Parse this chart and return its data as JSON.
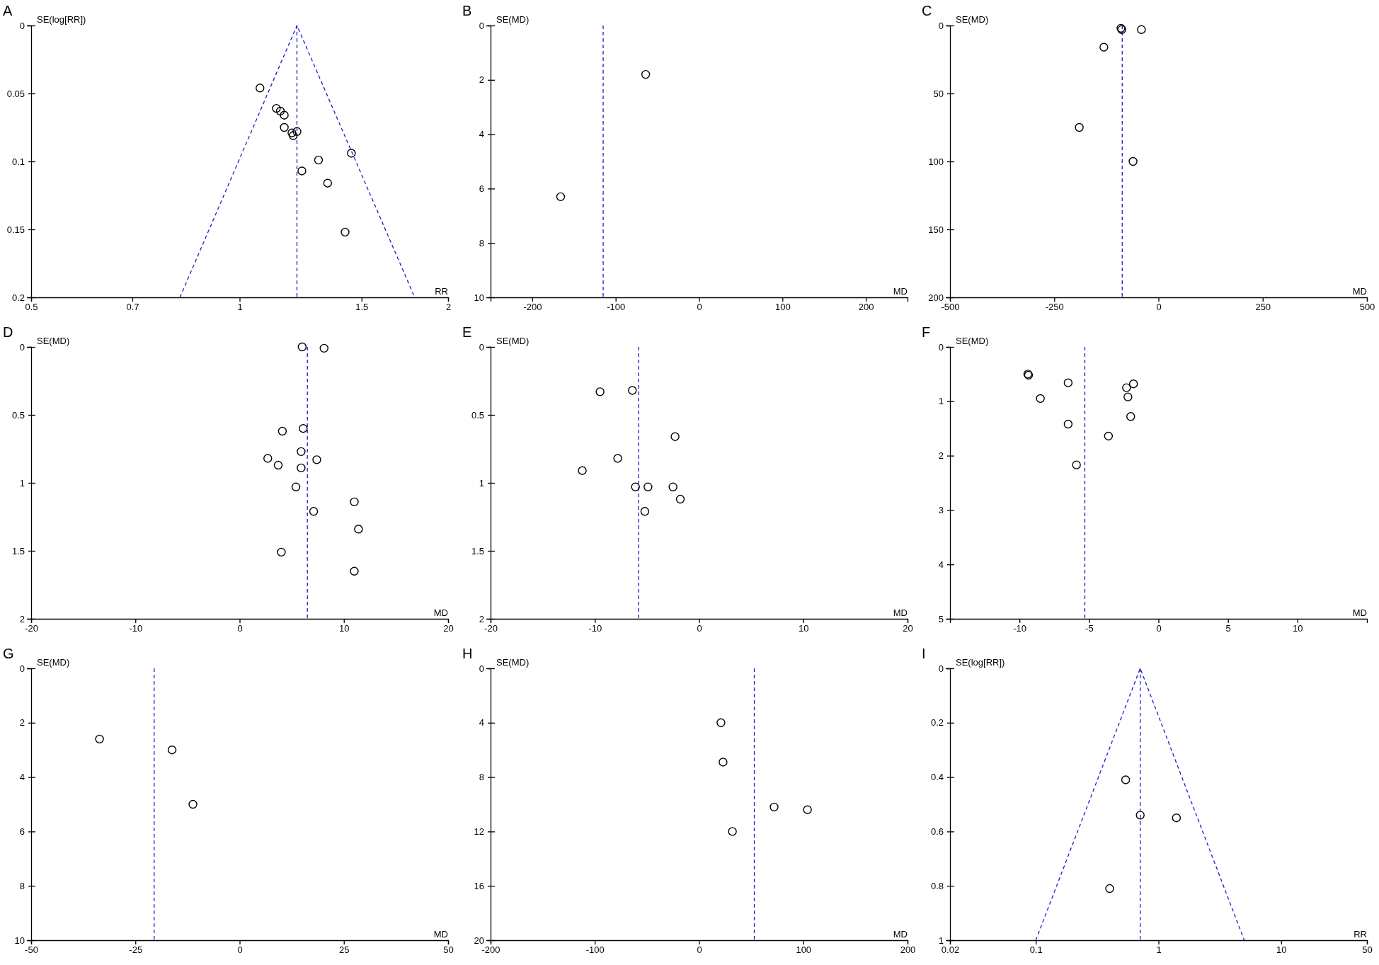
{
  "chart_data": [
    {
      "type": "scatter",
      "title": "A",
      "xlabel": "RR",
      "ylabel": "SE(log[RR])",
      "log": "x",
      "xlim": [
        0.5,
        2
      ],
      "xticks": [
        0.5,
        0.7,
        1,
        1.5,
        2
      ],
      "ylim": [
        0.2,
        0
      ],
      "yticks": [
        0,
        0.05,
        0.1,
        0.15,
        0.2
      ],
      "series": [
        {
          "color": "#000000",
          "marker": "circle",
          "x": [
            1.07,
            1.13,
            1.145,
            1.16,
            1.16,
            1.19,
            1.21,
            1.195,
            1.45,
            1.3,
            1.23,
            1.34,
            1.42
          ],
          "values": [
            0.046,
            0.061,
            0.063,
            0.066,
            0.075,
            0.079,
            0.078,
            0.081,
            0.094,
            0.099,
            0.107,
            0.116,
            0.152
          ]
        },
        {
          "type": "line",
          "marker": "none",
          "color": "#1a1acc",
          "line_style": "dashed",
          "x": [
            0.82,
            1.21,
            1.79
          ],
          "values": [
            0.2,
            0,
            0.2
          ]
        }
      ],
      "ref_lines": [
        {
          "axis": "x",
          "value": 1.21,
          "color": "#1a1acc",
          "line_style": "dashed"
        }
      ]
    },
    {
      "type": "scatter",
      "title": "B",
      "xlabel": "MD",
      "ylabel": "SE(MD)",
      "marker": "circle",
      "xlim": [
        -250,
        250
      ],
      "xticks": [
        -200,
        -100,
        0,
        100,
        200
      ],
      "ylim": [
        10,
        0
      ],
      "yticks": [
        0,
        2,
        4,
        6,
        8,
        10
      ],
      "series": [
        {
          "color": "#000000",
          "x": [
            -64,
            -166
          ],
          "values": [
            1.8,
            6.3
          ]
        }
      ],
      "ref_lines": [
        {
          "axis": "x",
          "value": -115,
          "color": "#1a1acc",
          "line_style": "dashed"
        }
      ]
    },
    {
      "type": "scatter",
      "title": "C",
      "xlabel": "MD",
      "ylabel": "SE(MD)",
      "marker": "circle",
      "xlim": [
        -500,
        500
      ],
      "xticks": [
        -500,
        -250,
        0,
        250,
        500
      ],
      "ylim": [
        200,
        0
      ],
      "yticks": [
        0,
        50,
        100,
        150,
        200
      ],
      "series": [
        {
          "color": "#000000",
          "x": [
            -90,
            -88,
            -41,
            -131,
            -190,
            -61
          ],
          "values": [
            2,
            3,
            3,
            16,
            75,
            100
          ]
        }
      ],
      "ref_lines": [
        {
          "axis": "x",
          "value": -87,
          "color": "#1a1acc",
          "line_style": "dashed"
        }
      ]
    },
    {
      "type": "scatter",
      "title": "D",
      "xlabel": "MD",
      "ylabel": "SE(MD)",
      "marker": "circle",
      "xlim": [
        -20,
        20
      ],
      "xticks": [
        -20,
        -10,
        0,
        10,
        20
      ],
      "ylim": [
        2,
        0
      ],
      "yticks": [
        0,
        0.5,
        1,
        1.5,
        2
      ],
      "series": [
        {
          "color": "#000000",
          "x": [
            6.0,
            8.1,
            6.1,
            4.1,
            5.9,
            2.7,
            7.4,
            3.7,
            5.9,
            5.4,
            11.0,
            7.1,
            11.4,
            4.0,
            11.0
          ],
          "values": [
            0,
            0.01,
            0.6,
            0.62,
            0.77,
            0.82,
            0.83,
            0.87,
            0.89,
            1.03,
            1.14,
            1.21,
            1.34,
            1.51,
            1.65
          ]
        }
      ],
      "ref_lines": [
        {
          "axis": "x",
          "value": 6.5,
          "color": "#1a1acc",
          "line_style": "dashed"
        }
      ]
    },
    {
      "type": "scatter",
      "title": "E",
      "xlabel": "MD",
      "ylabel": "SE(MD)",
      "marker": "circle",
      "xlim": [
        -20,
        20
      ],
      "xticks": [
        -20,
        -10,
        0,
        10,
        20
      ],
      "ylim": [
        2,
        0
      ],
      "yticks": [
        0,
        0.5,
        1,
        1.5,
        2
      ],
      "series": [
        {
          "color": "#000000",
          "x": [
            -9.5,
            -6.4,
            -2.3,
            -7.8,
            -11.2,
            -6.1,
            -4.9,
            -2.5,
            -1.8,
            -5.2
          ],
          "values": [
            0.33,
            0.32,
            0.66,
            0.82,
            0.91,
            1.03,
            1.03,
            1.03,
            1.12,
            1.21
          ]
        }
      ],
      "ref_lines": [
        {
          "axis": "x",
          "value": -5.8,
          "color": "#1a1acc",
          "line_style": "dashed"
        }
      ]
    },
    {
      "type": "scatter",
      "title": "F",
      "xlabel": "MD",
      "ylabel": "SE(MD)",
      "marker": "circle",
      "xlim": [
        -15,
        15
      ],
      "xticks": [
        -10,
        -5,
        0,
        5,
        10
      ],
      "ylim": [
        5,
        0
      ],
      "yticks": [
        0,
        1,
        2,
        3,
        4,
        5
      ],
      "series": [
        {
          "color": "#000000",
          "x": [
            -9.4,
            -9.35,
            -8.5,
            -6.5,
            -6.5,
            -5.9,
            -3.6,
            -2.3,
            -1.8,
            -2.2,
            -2.0
          ],
          "values": [
            0.5,
            0.52,
            0.95,
            0.66,
            1.42,
            2.17,
            1.64,
            0.75,
            0.68,
            0.92,
            1.28
          ]
        }
      ],
      "ref_lines": [
        {
          "axis": "x",
          "value": -5.3,
          "color": "#1a1acc",
          "line_style": "dashed"
        }
      ]
    },
    {
      "type": "scatter",
      "title": "G",
      "xlabel": "MD",
      "ylabel": "SE(MD)",
      "marker": "circle",
      "xlim": [
        -50,
        50
      ],
      "xticks": [
        -50,
        -25,
        0,
        25,
        50
      ],
      "ylim": [
        10,
        0
      ],
      "yticks": [
        0,
        2,
        4,
        6,
        8,
        10
      ],
      "series": [
        {
          "color": "#000000",
          "x": [
            -33.6,
            -16.2,
            -11.2
          ],
          "values": [
            2.6,
            3.0,
            5.0
          ]
        }
      ],
      "ref_lines": [
        {
          "axis": "x",
          "value": -20.5,
          "color": "#1a1acc",
          "line_style": "dashed"
        }
      ]
    },
    {
      "type": "scatter",
      "title": "H",
      "xlabel": "MD",
      "ylabel": "SE(MD)",
      "marker": "circle",
      "xlim": [
        -200,
        200
      ],
      "xticks": [
        -200,
        -100,
        0,
        100,
        200
      ],
      "ylim": [
        20,
        0
      ],
      "yticks": [
        0,
        4,
        8,
        12,
        16,
        20
      ],
      "series": [
        {
          "color": "#000000",
          "x": [
            21,
            23,
            72,
            104,
            32
          ],
          "values": [
            4.0,
            6.9,
            10.2,
            10.4,
            12.0
          ]
        }
      ],
      "ref_lines": [
        {
          "axis": "x",
          "value": 53,
          "color": "#1a1acc",
          "line_style": "dashed"
        }
      ]
    },
    {
      "type": "scatter",
      "title": "I",
      "xlabel": "RR",
      "ylabel": "SE(log[RR])",
      "log": "x",
      "xlim": [
        0.02,
        50
      ],
      "xticks": [
        0.02,
        0.1,
        1,
        10,
        50
      ],
      "ylim": [
        1,
        0
      ],
      "yticks": [
        0,
        0.2,
        0.4,
        0.6,
        0.8,
        1
      ],
      "series": [
        {
          "color": "#000000",
          "marker": "circle",
          "x": [
            0.54,
            0.71,
            1.4,
            0.4
          ],
          "values": [
            0.41,
            0.54,
            0.55,
            0.81
          ]
        },
        {
          "type": "line",
          "marker": "none",
          "color": "#1a1acc",
          "line_style": "dashed",
          "x": [
            0.1,
            0.71,
            5.0
          ],
          "values": [
            1,
            0,
            1
          ]
        }
      ],
      "ref_lines": [
        {
          "axis": "x",
          "value": 0.71,
          "color": "#1a1acc",
          "line_style": "dashed"
        }
      ]
    }
  ]
}
